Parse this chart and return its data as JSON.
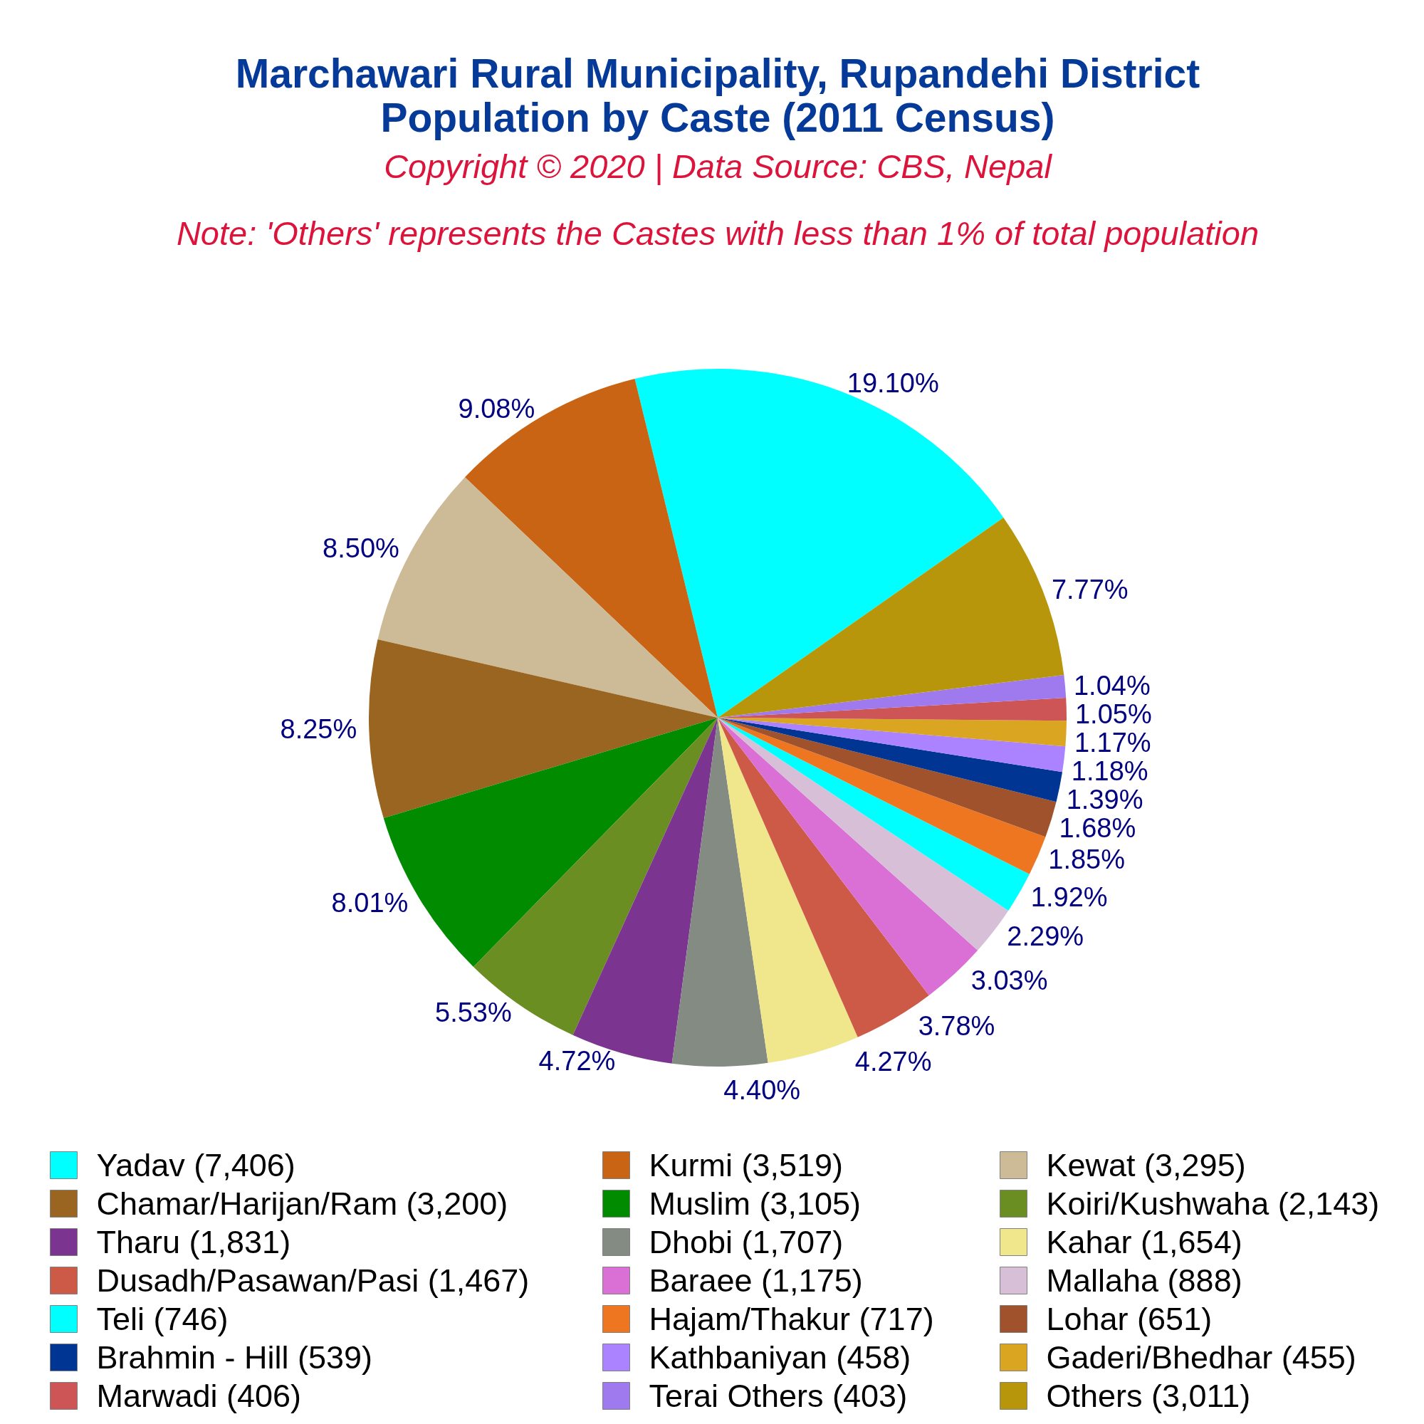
{
  "chart_data": {
    "type": "pie",
    "title": "Marchawari Rural Municipality, Rupandehi District\nPopulation by Caste (2011 Census)",
    "subtitle": "Copyright © 2020 | Data Source: CBS, Nepal",
    "annotations": [
      "Note: 'Others' represents the Castes with less than 1% of total population"
    ],
    "categories": [
      "Yadav (7,406)",
      "Kurmi (3,519)",
      "Kewat (3,295)",
      "Chamar/Harijan/Ram (3,200)",
      "Muslim (3,105)",
      "Koiri/Kushwaha (2,143)",
      "Tharu (1,831)",
      "Dhobi (1,707)",
      "Kahar (1,654)",
      "Dusadh/Pasawan/Pasi (1,467)",
      "Baraee (1,175)",
      "Mallaha (888)",
      "Teli (746)",
      "Hajam/Thakur (717)",
      "Lohar (651)",
      "Brahmin - Hill (539)",
      "Kathbaniyan (458)",
      "Gaderi/Bhedhar (455)",
      "Marwadi (406)",
      "Terai Others (403)",
      "Others (3,011)"
    ],
    "values": [
      19.1,
      9.08,
      8.5,
      8.25,
      8.01,
      5.53,
      4.72,
      4.4,
      4.27,
      3.78,
      3.03,
      2.29,
      1.92,
      1.85,
      1.68,
      1.39,
      1.18,
      1.17,
      1.05,
      1.04,
      7.77
    ],
    "value_labels": [
      "19.10%",
      "9.08%",
      "8.50%",
      "8.25%",
      "8.01%",
      "5.53%",
      "4.72%",
      "4.40%",
      "4.27%",
      "3.78%",
      "3.03%",
      "2.29%",
      "1.92%",
      "1.85%",
      "1.68%",
      "1.39%",
      "1.18%",
      "1.17%",
      "1.05%",
      "1.04%",
      "7.77%"
    ],
    "colors": [
      "#00ffff",
      "#c86414",
      "#cdba96",
      "#996520",
      "#008b00",
      "#6b8e23",
      "#7b3590",
      "#838b83",
      "#f0e68c",
      "#cd5a46",
      "#da70d6",
      "#d8bfd8",
      "#00ffff",
      "#ee7621",
      "#a0522d",
      "#003594",
      "#ab82ff",
      "#daa520",
      "#cd5555",
      "#9f79ee",
      "#b8960c"
    ],
    "legend": "bottom"
  }
}
